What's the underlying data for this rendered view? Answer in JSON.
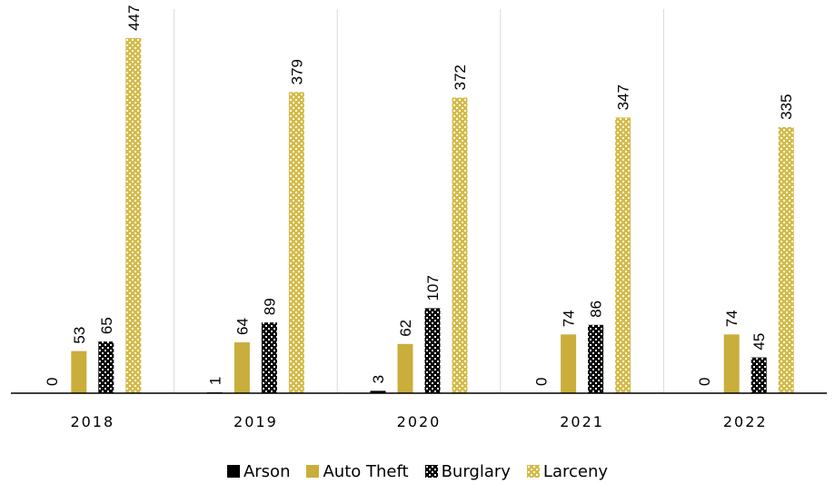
{
  "chart_data": {
    "type": "bar",
    "categories": [
      "2018",
      "2019",
      "2020",
      "2021",
      "2022"
    ],
    "series": [
      {
        "name": "Arson",
        "values": [
          0,
          1,
          3,
          0,
          0
        ],
        "color": "#000000",
        "pattern": "solid"
      },
      {
        "name": "Auto Theft",
        "values": [
          53,
          64,
          62,
          74,
          74
        ],
        "color": "#C9AE3C",
        "pattern": "solid"
      },
      {
        "name": "Burglary",
        "values": [
          65,
          89,
          107,
          86,
          45
        ],
        "color": "#000000",
        "pattern": "lattice-black"
      },
      {
        "name": "Larceny",
        "values": [
          447,
          379,
          372,
          347,
          335
        ],
        "color": "#D4BB4A",
        "pattern": "lattice-gold"
      }
    ],
    "title": "",
    "xlabel": "",
    "ylabel": "",
    "ylim": [
      0,
      480
    ],
    "grid": "vertical category separators",
    "legend": "bottom-center",
    "data_labels": "rotated vertical above bars"
  }
}
